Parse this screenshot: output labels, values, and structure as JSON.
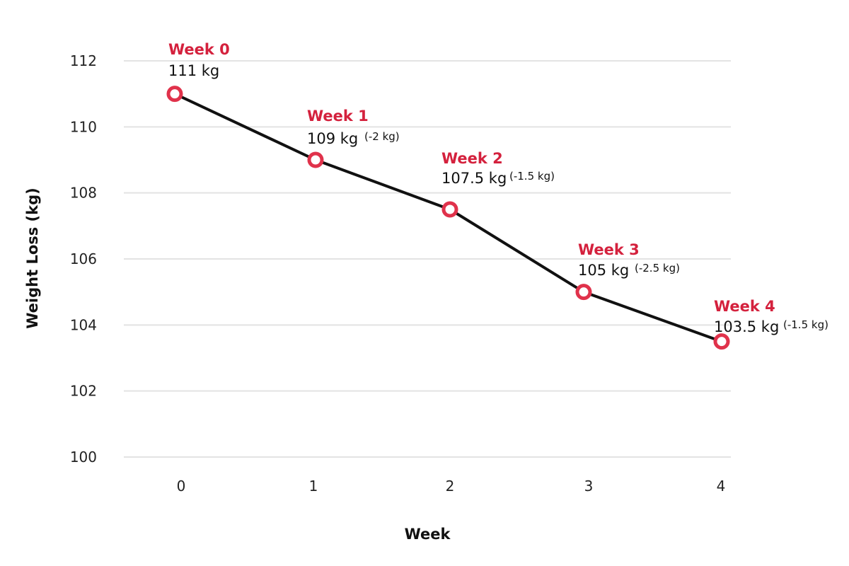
{
  "chart_data": {
    "type": "line",
    "title": "",
    "xlabel": "Week",
    "ylabel": "Weight Loss (kg)",
    "x": [
      0,
      1,
      2,
      3,
      4
    ],
    "xticks": [
      "0",
      "1",
      "2",
      "3",
      "4"
    ],
    "yticks": [
      "100",
      "102",
      "104",
      "106",
      "108",
      "110",
      "112"
    ],
    "ylim": [
      100,
      112
    ],
    "grid": "horizontal",
    "series": [
      {
        "values": [
          111,
          109,
          107.5,
          105,
          103.5
        ]
      }
    ],
    "annotations": [
      {
        "week": "Week 0",
        "value": "111 kg",
        "change": ""
      },
      {
        "week": "Week 1",
        "value": "109 kg",
        "change": "(-2 kg)"
      },
      {
        "week": "Week 2",
        "value": "107.5 kg",
        "change": "(-1.5 kg)"
      },
      {
        "week": "Week 3",
        "value": "105 kg",
        "change": "(-2.5 kg)"
      },
      {
        "week": "Week 4",
        "value": "103.5 kg",
        "change": "(-1.5 kg)"
      }
    ]
  },
  "colors": {
    "line": "#111111",
    "marker": "#e0324b",
    "week_label": "#d4213d",
    "grid": "#e3e3e3"
  }
}
